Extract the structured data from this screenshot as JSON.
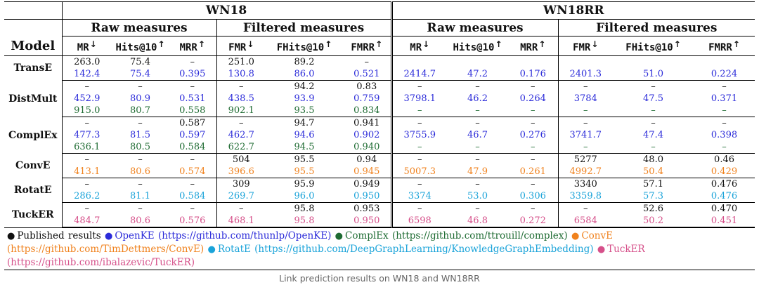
{
  "caption": "Link prediction results on WN18 and WN18RR",
  "header": {
    "datasets": [
      "WN18",
      "WN18RR"
    ],
    "groups": [
      "Raw measures",
      "Filtered measures"
    ],
    "model_label": "Model",
    "columns": [
      {
        "name": "MR",
        "arrow": "↓"
      },
      {
        "name": "Hits@10",
        "arrow": "↑"
      },
      {
        "name": "MRR",
        "arrow": "↑"
      },
      {
        "name": "FMR",
        "arrow": "↓"
      },
      {
        "name": "FHits@10",
        "arrow": "↑"
      },
      {
        "name": "FMRR",
        "arrow": "↑"
      }
    ]
  },
  "colors": {
    "published": "#111111",
    "OpenKE": "#2b2bd9",
    "ComplEx": "#1e6b32",
    "ConvE": "#f0821e",
    "RotatE": "#1aa3d9",
    "TuckER": "#d6508a"
  },
  "models": [
    {
      "name": "TransE",
      "rows": [
        {
          "source": "published",
          "values": [
            "263.0",
            "75.4",
            "–",
            "251.0",
            "89.2",
            "–",
            "",
            "",
            "",
            "",
            "",
            ""
          ]
        },
        {
          "source": "OpenKE",
          "values": [
            "142.4",
            "75.4",
            "0.395",
            "130.8",
            "86.0",
            "0.521",
            "2414.7",
            "47.2",
            "0.176",
            "2401.3",
            "51.0",
            "0.224"
          ]
        }
      ]
    },
    {
      "name": "DistMult",
      "rows": [
        {
          "source": "published",
          "values": [
            "–",
            "–",
            "–",
            "–",
            "94.2",
            "0.83",
            "–",
            "–",
            "–",
            "–",
            "–",
            "–"
          ]
        },
        {
          "source": "OpenKE",
          "values": [
            "452.9",
            "80.9",
            "0.531",
            "438.5",
            "93.9",
            "0.759",
            "3798.1",
            "46.2",
            "0.264",
            "3784",
            "47.5",
            "0.371"
          ]
        },
        {
          "source": "ComplEx",
          "values": [
            "915.0",
            "80.7",
            "0.558",
            "902.1",
            "93.5",
            "0.834",
            "–",
            "–",
            "–",
            "–",
            "–",
            "–"
          ]
        }
      ]
    },
    {
      "name": "ComplEx",
      "rows": [
        {
          "source": "published",
          "values": [
            "–",
            "–",
            "0.587",
            "–",
            "94.7",
            "0.941",
            "–",
            "–",
            "–",
            "–",
            "–",
            "–"
          ]
        },
        {
          "source": "OpenKE",
          "values": [
            "477.3",
            "81.5",
            "0.597",
            "462.7",
            "94.6",
            "0.902",
            "3755.9",
            "46.7",
            "0.276",
            "3741.7",
            "47.4",
            "0.398"
          ]
        },
        {
          "source": "ComplEx",
          "values": [
            "636.1",
            "80.5",
            "0.584",
            "622.7",
            "94.5",
            "0.940",
            "–",
            "–",
            "–",
            "–",
            "–",
            "–"
          ]
        }
      ]
    },
    {
      "name": "ConvE",
      "rows": [
        {
          "source": "published",
          "values": [
            "–",
            "–",
            "–",
            "504",
            "95.5",
            "0.94",
            "–",
            "–",
            "–",
            "5277",
            "48.0",
            "0.46"
          ]
        },
        {
          "source": "ConvE",
          "values": [
            "413.1",
            "80.6",
            "0.574",
            "396.6",
            "95.5",
            "0.945",
            "5007.3",
            "47.9",
            "0.261",
            "4992.7",
            "50.4",
            "0.429"
          ]
        }
      ]
    },
    {
      "name": "RotatE",
      "rows": [
        {
          "source": "published",
          "values": [
            "–",
            "–",
            "–",
            "309",
            "95.9",
            "0.949",
            "–",
            "–",
            "–",
            "3340",
            "57.1",
            "0.476"
          ]
        },
        {
          "source": "RotatE",
          "values": [
            "286.2",
            "81.1",
            "0.584",
            "269.7",
            "96.0",
            "0.950",
            "3374",
            "53.0",
            "0.306",
            "3359.8",
            "57.3",
            "0.476"
          ]
        }
      ]
    },
    {
      "name": "TuckER",
      "rows": [
        {
          "source": "published",
          "values": [
            "–",
            "–",
            "–",
            "–",
            "95.8",
            "0.953",
            "–",
            "–",
            "–",
            "–",
            "52.6",
            "0.470"
          ]
        },
        {
          "source": "TuckER",
          "values": [
            "484.7",
            "80.6",
            "0.576",
            "468.1",
            "95.8",
            "0.950",
            "6598",
            "46.8",
            "0.272",
            "6584",
            "50.2",
            "0.451"
          ]
        }
      ]
    }
  ],
  "legend": [
    {
      "source": "published",
      "text": "Published results"
    },
    {
      "source": "OpenKE",
      "text": "OpenKE (https://github.com/thunlp/OpenKE)"
    },
    {
      "source": "ComplEx",
      "text": "ComplEx (https://github.com/ttrouill/complex)"
    },
    {
      "source": "ConvE",
      "text": "ConvE (https://github.com/TimDettmers/ConvE)"
    },
    {
      "source": "RotatE",
      "text": "RotatE (https://github.com/DeepGraphLearning/KnowledgeGraphEmbedding)"
    },
    {
      "source": "TuckER",
      "text": "TuckER (https://github.com/ibalazevic/TuckER)"
    }
  ]
}
